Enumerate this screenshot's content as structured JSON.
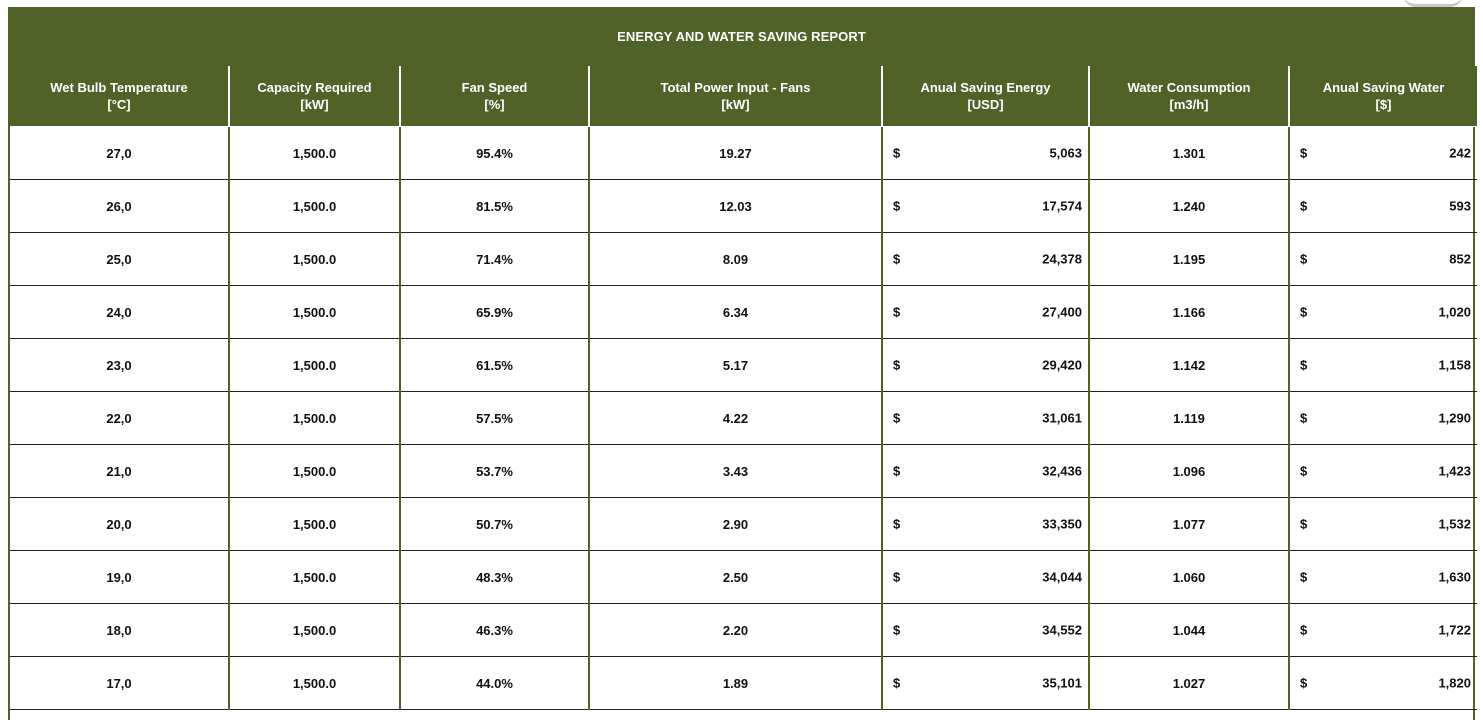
{
  "report": {
    "title": "ENERGY AND WATER SAVING REPORT",
    "columns": [
      {
        "name": "Wet Bulb Temperature",
        "unit": "[°C]"
      },
      {
        "name": "Capacity Required",
        "unit": "[kW]"
      },
      {
        "name": "Fan Speed",
        "unit": "[%]"
      },
      {
        "name": "Total Power Input - Fans",
        "unit": "[kW]"
      },
      {
        "name": "Anual Saving Energy",
        "unit": "[USD]"
      },
      {
        "name": "Water Consumption",
        "unit": "[m3/h]"
      },
      {
        "name": "Anual Saving Water",
        "unit": "[$]"
      }
    ],
    "currency_symbol": "$",
    "rows": [
      {
        "wbt": "27,0",
        "capacity": "1,500.0",
        "fan": "95.4%",
        "power": "19.27",
        "energy": "5,063",
        "water": "1.301",
        "water_saving": "242"
      },
      {
        "wbt": "26,0",
        "capacity": "1,500.0",
        "fan": "81.5%",
        "power": "12.03",
        "energy": "17,574",
        "water": "1.240",
        "water_saving": "593"
      },
      {
        "wbt": "25,0",
        "capacity": "1,500.0",
        "fan": "71.4%",
        "power": "8.09",
        "energy": "24,378",
        "water": "1.195",
        "water_saving": "852"
      },
      {
        "wbt": "24,0",
        "capacity": "1,500.0",
        "fan": "65.9%",
        "power": "6.34",
        "energy": "27,400",
        "water": "1.166",
        "water_saving": "1,020"
      },
      {
        "wbt": "23,0",
        "capacity": "1,500.0",
        "fan": "61.5%",
        "power": "5.17",
        "energy": "29,420",
        "water": "1.142",
        "water_saving": "1,158"
      },
      {
        "wbt": "22,0",
        "capacity": "1,500.0",
        "fan": "57.5%",
        "power": "4.22",
        "energy": "31,061",
        "water": "1.119",
        "water_saving": "1,290"
      },
      {
        "wbt": "21,0",
        "capacity": "1,500.0",
        "fan": "53.7%",
        "power": "3.43",
        "energy": "32,436",
        "water": "1.096",
        "water_saving": "1,423"
      },
      {
        "wbt": "20,0",
        "capacity": "1,500.0",
        "fan": "50.7%",
        "power": "2.90",
        "energy": "33,350",
        "water": "1.077",
        "water_saving": "1,532"
      },
      {
        "wbt": "19,0",
        "capacity": "1,500.0",
        "fan": "48.3%",
        "power": "2.50",
        "energy": "34,044",
        "water": "1.060",
        "water_saving": "1,630"
      },
      {
        "wbt": "18,0",
        "capacity": "1,500.0",
        "fan": "46.3%",
        "power": "2.20",
        "energy": "34,552",
        "water": "1.044",
        "water_saving": "1,722"
      },
      {
        "wbt": "17,0",
        "capacity": "1,500.0",
        "fan": "44.0%",
        "power": "1.89",
        "energy": "35,101",
        "water": "1.027",
        "water_saving": "1,820"
      }
    ]
  },
  "colors": {
    "header_bg": "#4f6228",
    "header_text": "#ffffff",
    "body_text": "#111111"
  }
}
